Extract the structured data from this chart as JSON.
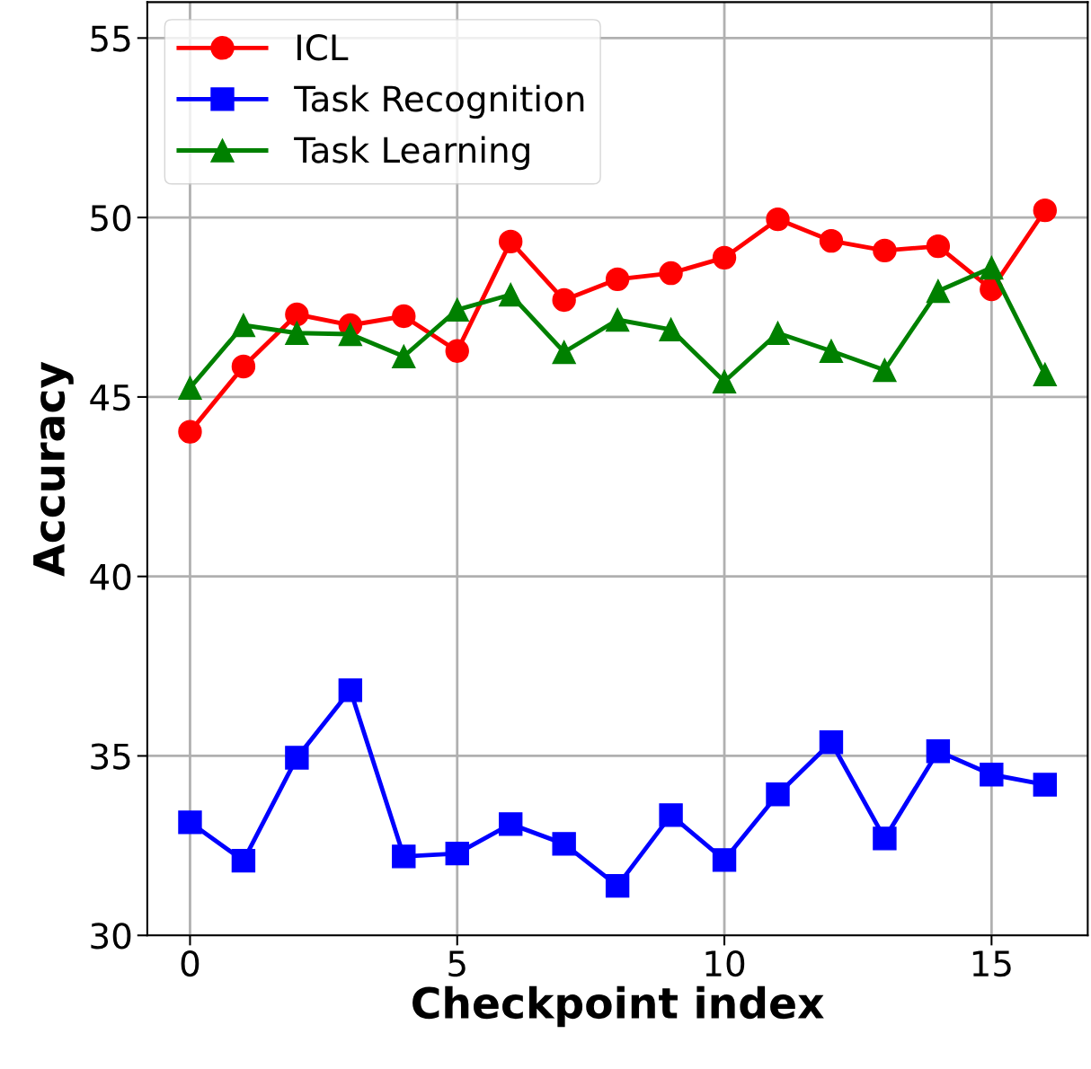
{
  "chart_data": {
    "type": "line",
    "xlabel": "Checkpoint index",
    "ylabel": "Accuracy",
    "x": [
      0,
      1,
      2,
      3,
      4,
      5,
      6,
      7,
      8,
      9,
      10,
      11,
      12,
      13,
      14,
      15,
      16
    ],
    "series": [
      {
        "name": "ICL",
        "color": "#ff0000",
        "marker": "circle",
        "values": [
          44.03,
          45.85,
          47.3,
          47.0,
          47.25,
          46.28,
          49.33,
          47.7,
          48.28,
          48.45,
          48.88,
          49.95,
          49.35,
          49.08,
          49.2,
          48.0,
          50.2
        ]
      },
      {
        "name": "Task Recognition",
        "color": "#0000ff",
        "marker": "square",
        "values": [
          33.15,
          32.08,
          34.95,
          36.83,
          32.2,
          32.28,
          33.1,
          32.55,
          31.38,
          33.35,
          32.1,
          33.93,
          35.38,
          32.7,
          35.13,
          34.48,
          34.2
        ]
      },
      {
        "name": "Task Learning",
        "color": "#008000",
        "marker": "triangle",
        "values": [
          45.25,
          47.0,
          46.78,
          46.75,
          46.13,
          47.43,
          47.85,
          46.25,
          47.15,
          46.88,
          45.43,
          46.78,
          46.28,
          45.75,
          47.95,
          48.6,
          45.63
        ]
      }
    ],
    "xlim": [
      -0.8,
      16.8
    ],
    "ylim": [
      30,
      56
    ],
    "xticks": [
      0,
      5,
      10,
      15
    ],
    "yticks": [
      30,
      35,
      40,
      45,
      50,
      55
    ],
    "grid": true,
    "legend": "top left",
    "line_style": "solid"
  }
}
